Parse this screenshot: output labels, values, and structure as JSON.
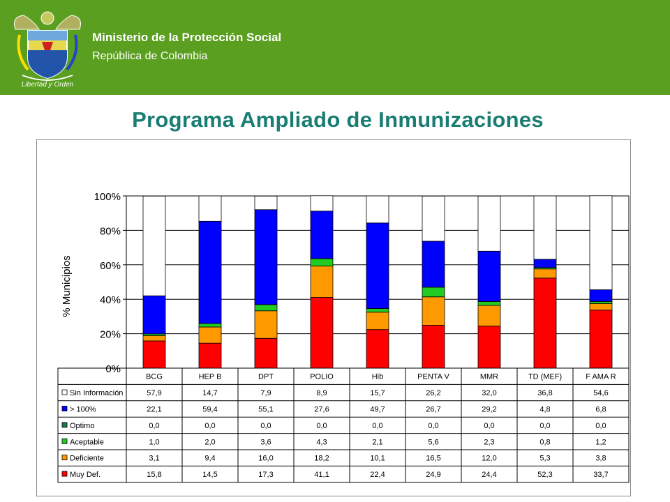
{
  "header": {
    "ministry": "Ministerio de la Protección Social",
    "republic": "República de Colombia",
    "motto": "Libertad y Orden"
  },
  "title": "Programa Ampliado de Inmunizaciones",
  "colors": {
    "header_bg": "#5a9f1f",
    "title": "#1a7d74",
    "Sin Información": "#ffffff",
    "> 100%": "#0000ff",
    "Optimo": "#1a7a4a",
    "Aceptable": "#22cc22",
    "Deficiente": "#ff9900",
    "Muy Def.": "#ff0000"
  },
  "chart_data": {
    "type": "bar",
    "stacked": true,
    "ylabel": "% Municipios",
    "ylim": [
      0,
      100
    ],
    "yticks": [
      "0%",
      "20%",
      "40%",
      "60%",
      "80%",
      "100%"
    ],
    "categories": [
      "BCG",
      "HEP B",
      "DPT",
      "POLIO",
      "Hib",
      "PENTA V",
      "MMR",
      "TD (MEF)",
      "F AMA R"
    ],
    "series": [
      {
        "name": "Sin Información",
        "display": [
          "57,9",
          "14,7",
          "7,9",
          "8,9",
          "15,7",
          "26,2",
          "32,0",
          "36,8",
          "54,6"
        ],
        "values": [
          57.9,
          14.7,
          7.9,
          8.9,
          15.7,
          26.2,
          32.0,
          36.8,
          54.6
        ]
      },
      {
        "name": "> 100%",
        "display": [
          "22,1",
          "59,4",
          "55,1",
          "27,6",
          "49,7",
          "26,7",
          "29,2",
          "4,8",
          "6,8"
        ],
        "values": [
          22.1,
          59.4,
          55.1,
          27.6,
          49.7,
          26.7,
          29.2,
          4.8,
          6.8
        ]
      },
      {
        "name": "Optimo",
        "display": [
          "0,0",
          "0,0",
          "0,0",
          "0,0",
          "0,0",
          "0,0",
          "0,0",
          "0,0",
          "0,0"
        ],
        "values": [
          0,
          0,
          0,
          0,
          0,
          0,
          0,
          0,
          0
        ]
      },
      {
        "name": "Aceptable",
        "display": [
          "1,0",
          "2,0",
          "3,6",
          "4,3",
          "2,1",
          "5,6",
          "2,3",
          "0,8",
          "1,2"
        ],
        "values": [
          1.0,
          2.0,
          3.6,
          4.3,
          2.1,
          5.6,
          2.3,
          0.8,
          1.2
        ]
      },
      {
        "name": "Deficiente",
        "display": [
          "3,1",
          "9,4",
          "16,0",
          "18,2",
          "10,1",
          "16,5",
          "12,0",
          "5,3",
          "3,8"
        ],
        "values": [
          3.1,
          9.4,
          16.0,
          18.2,
          10.1,
          16.5,
          12.0,
          5.3,
          3.8
        ]
      },
      {
        "name": "Muy Def.",
        "display": [
          "15,8",
          "14,5",
          "17,3",
          "41,1",
          "22,4",
          "24,9",
          "24,4",
          "52,3",
          "33,7"
        ],
        "values": [
          15.8,
          14.5,
          17.3,
          41.1,
          22.4,
          24.9,
          24.4,
          52.3,
          33.7
        ]
      }
    ]
  }
}
